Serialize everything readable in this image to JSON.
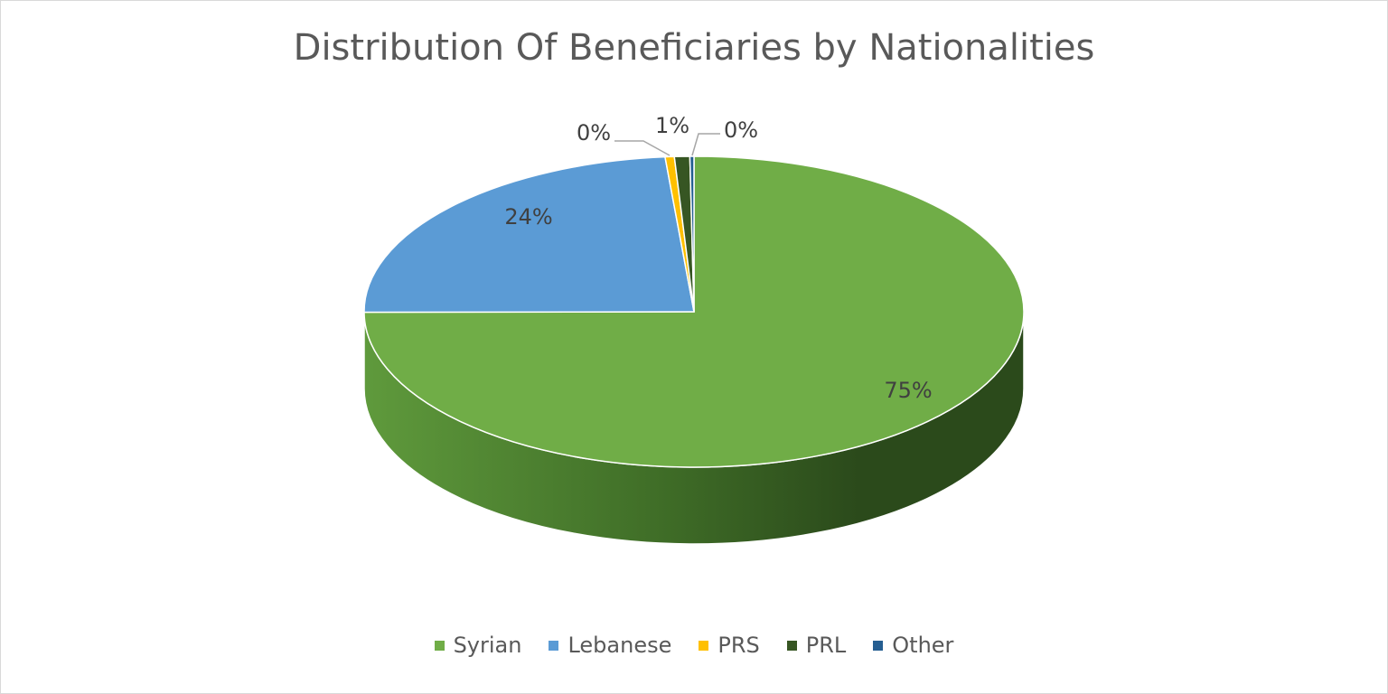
{
  "chart_data": {
    "type": "pie",
    "title": "Distribution Of Beneficiaries by Nationalities",
    "categories": [
      "Syrian",
      "Lebanese",
      "PRS",
      "PRL",
      "Other"
    ],
    "values": [
      75,
      24,
      0,
      1,
      0
    ],
    "data_labels": [
      "75%",
      "24%",
      "0%",
      "1%",
      "0%"
    ],
    "colors": [
      "#70ad47",
      "#5b9bd5",
      "#ffc000",
      "#375623",
      "#255e91"
    ],
    "legend_position": "bottom",
    "style": "3d"
  }
}
